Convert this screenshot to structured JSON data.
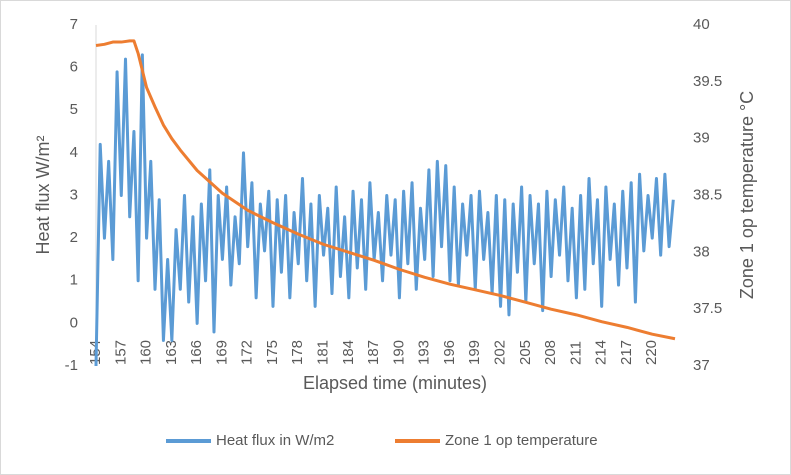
{
  "chart_data": {
    "type": "line",
    "xlabel": "Elapsed time (minutes)",
    "ylabel": "Heat flux W/m²",
    "y2label": "Zone 1 op temperature °C",
    "xlim": [
      154,
      222.7
    ],
    "xticks": [
      154,
      157,
      160,
      163,
      166,
      169,
      172,
      175,
      178,
      181,
      184,
      187,
      190,
      193,
      196,
      199,
      202,
      205,
      208,
      211,
      214,
      217,
      220
    ],
    "ylim": [
      -1,
      7
    ],
    "yticks": [
      -1,
      0,
      1,
      2,
      3,
      4,
      5,
      6,
      7
    ],
    "y2lim": [
      37,
      40
    ],
    "y2ticks": [
      37,
      37.5,
      38,
      38.5,
      39,
      39.5,
      40
    ],
    "legend": "bottom",
    "series": [
      {
        "name": "Heat flux in W/m2",
        "color": "#5b9bd5",
        "x": [
          154,
          154.5,
          155,
          155.5,
          156,
          156.5,
          157,
          157.5,
          158,
          158.5,
          159,
          159.5,
          160,
          160.5,
          161,
          161.5,
          162,
          162.5,
          163,
          163.5,
          164,
          164.5,
          165,
          165.5,
          166,
          166.5,
          167,
          167.5,
          168,
          168.5,
          169,
          169.5,
          170,
          170.5,
          171,
          171.5,
          172,
          172.5,
          173,
          173.5,
          174,
          174.5,
          175,
          175.5,
          176,
          176.5,
          177,
          177.5,
          178,
          178.5,
          179,
          179.5,
          180,
          180.5,
          181,
          181.5,
          182,
          182.5,
          183,
          183.5,
          184,
          184.5,
          185,
          185.5,
          186,
          186.5,
          187,
          187.5,
          188,
          188.5,
          189,
          189.5,
          190,
          190.5,
          191,
          191.5,
          192,
          192.5,
          193,
          193.5,
          194,
          194.5,
          195,
          195.5,
          196,
          196.5,
          197,
          197.5,
          198,
          198.5,
          199,
          199.5,
          200,
          200.5,
          201,
          201.5,
          202,
          202.5,
          203,
          203.5,
          204,
          204.5,
          205,
          205.5,
          206,
          206.5,
          207,
          207.5,
          208,
          208.5,
          209,
          209.5,
          210,
          210.5,
          211,
          211.5,
          212,
          212.5,
          213,
          213.5,
          214,
          214.5,
          215,
          215.5,
          216,
          216.5,
          217,
          217.5,
          218,
          218.5,
          219,
          219.5,
          220,
          220.5,
          221,
          221.5,
          222,
          222.5
        ],
        "values": [
          -1.0,
          4.2,
          2.0,
          3.8,
          1.5,
          5.9,
          3.0,
          6.2,
          2.5,
          4.5,
          1.0,
          6.3,
          2.0,
          3.8,
          0.8,
          2.9,
          -0.4,
          1.5,
          -0.4,
          2.2,
          0.8,
          3.0,
          0.5,
          2.5,
          0.0,
          2.8,
          1.0,
          3.6,
          -0.2,
          3.0,
          1.5,
          3.2,
          0.9,
          2.5,
          1.4,
          4.0,
          1.8,
          3.3,
          0.6,
          2.8,
          1.7,
          3.1,
          0.4,
          2.9,
          1.2,
          3.0,
          0.6,
          2.6,
          1.4,
          3.4,
          1.0,
          2.8,
          0.4,
          3.0,
          1.6,
          2.7,
          0.7,
          3.2,
          1.1,
          2.5,
          0.6,
          3.1,
          1.3,
          2.9,
          0.8,
          3.3,
          1.5,
          2.6,
          1.0,
          3.0,
          1.6,
          2.9,
          0.6,
          3.1,
          1.4,
          3.3,
          0.8,
          2.7,
          1.5,
          3.6,
          1.1,
          3.8,
          1.8,
          3.7,
          1.0,
          3.2,
          0.9,
          2.8,
          1.6,
          3.0,
          0.8,
          3.1,
          1.5,
          2.6,
          0.7,
          3.0,
          0.4,
          2.9,
          0.2,
          2.8,
          1.2,
          3.2,
          0.5,
          3.0,
          1.4,
          2.8,
          0.3,
          3.1,
          1.1,
          2.9,
          1.6,
          3.2,
          1.0,
          2.7,
          0.6,
          3.0,
          0.8,
          3.4,
          1.4,
          2.9,
          0.4,
          3.2,
          1.5,
          2.8,
          0.9,
          3.1,
          1.3,
          3.3,
          0.5,
          3.5,
          1.7,
          3.0,
          2.0,
          3.4,
          1.6,
          3.5,
          1.8,
          2.9
        ]
      },
      {
        "name": "Zone 1 op temperature",
        "color": "#ed7d31",
        "axis": "y2",
        "x": [
          154,
          155,
          156,
          157,
          158,
          158.5,
          159,
          160,
          161,
          162,
          163,
          164,
          166,
          169,
          172,
          175,
          178,
          181,
          184,
          187,
          190,
          193,
          196,
          199,
          202,
          205,
          208,
          211,
          214,
          217,
          220,
          222.7
        ],
        "values": [
          39.82,
          39.83,
          39.85,
          39.85,
          39.86,
          39.86,
          39.75,
          39.45,
          39.28,
          39.12,
          39.0,
          38.9,
          38.72,
          38.52,
          38.37,
          38.26,
          38.16,
          38.07,
          38.0,
          37.93,
          37.85,
          37.78,
          37.72,
          37.67,
          37.62,
          37.56,
          37.5,
          37.45,
          37.39,
          37.34,
          37.28,
          37.24
        ]
      }
    ]
  }
}
